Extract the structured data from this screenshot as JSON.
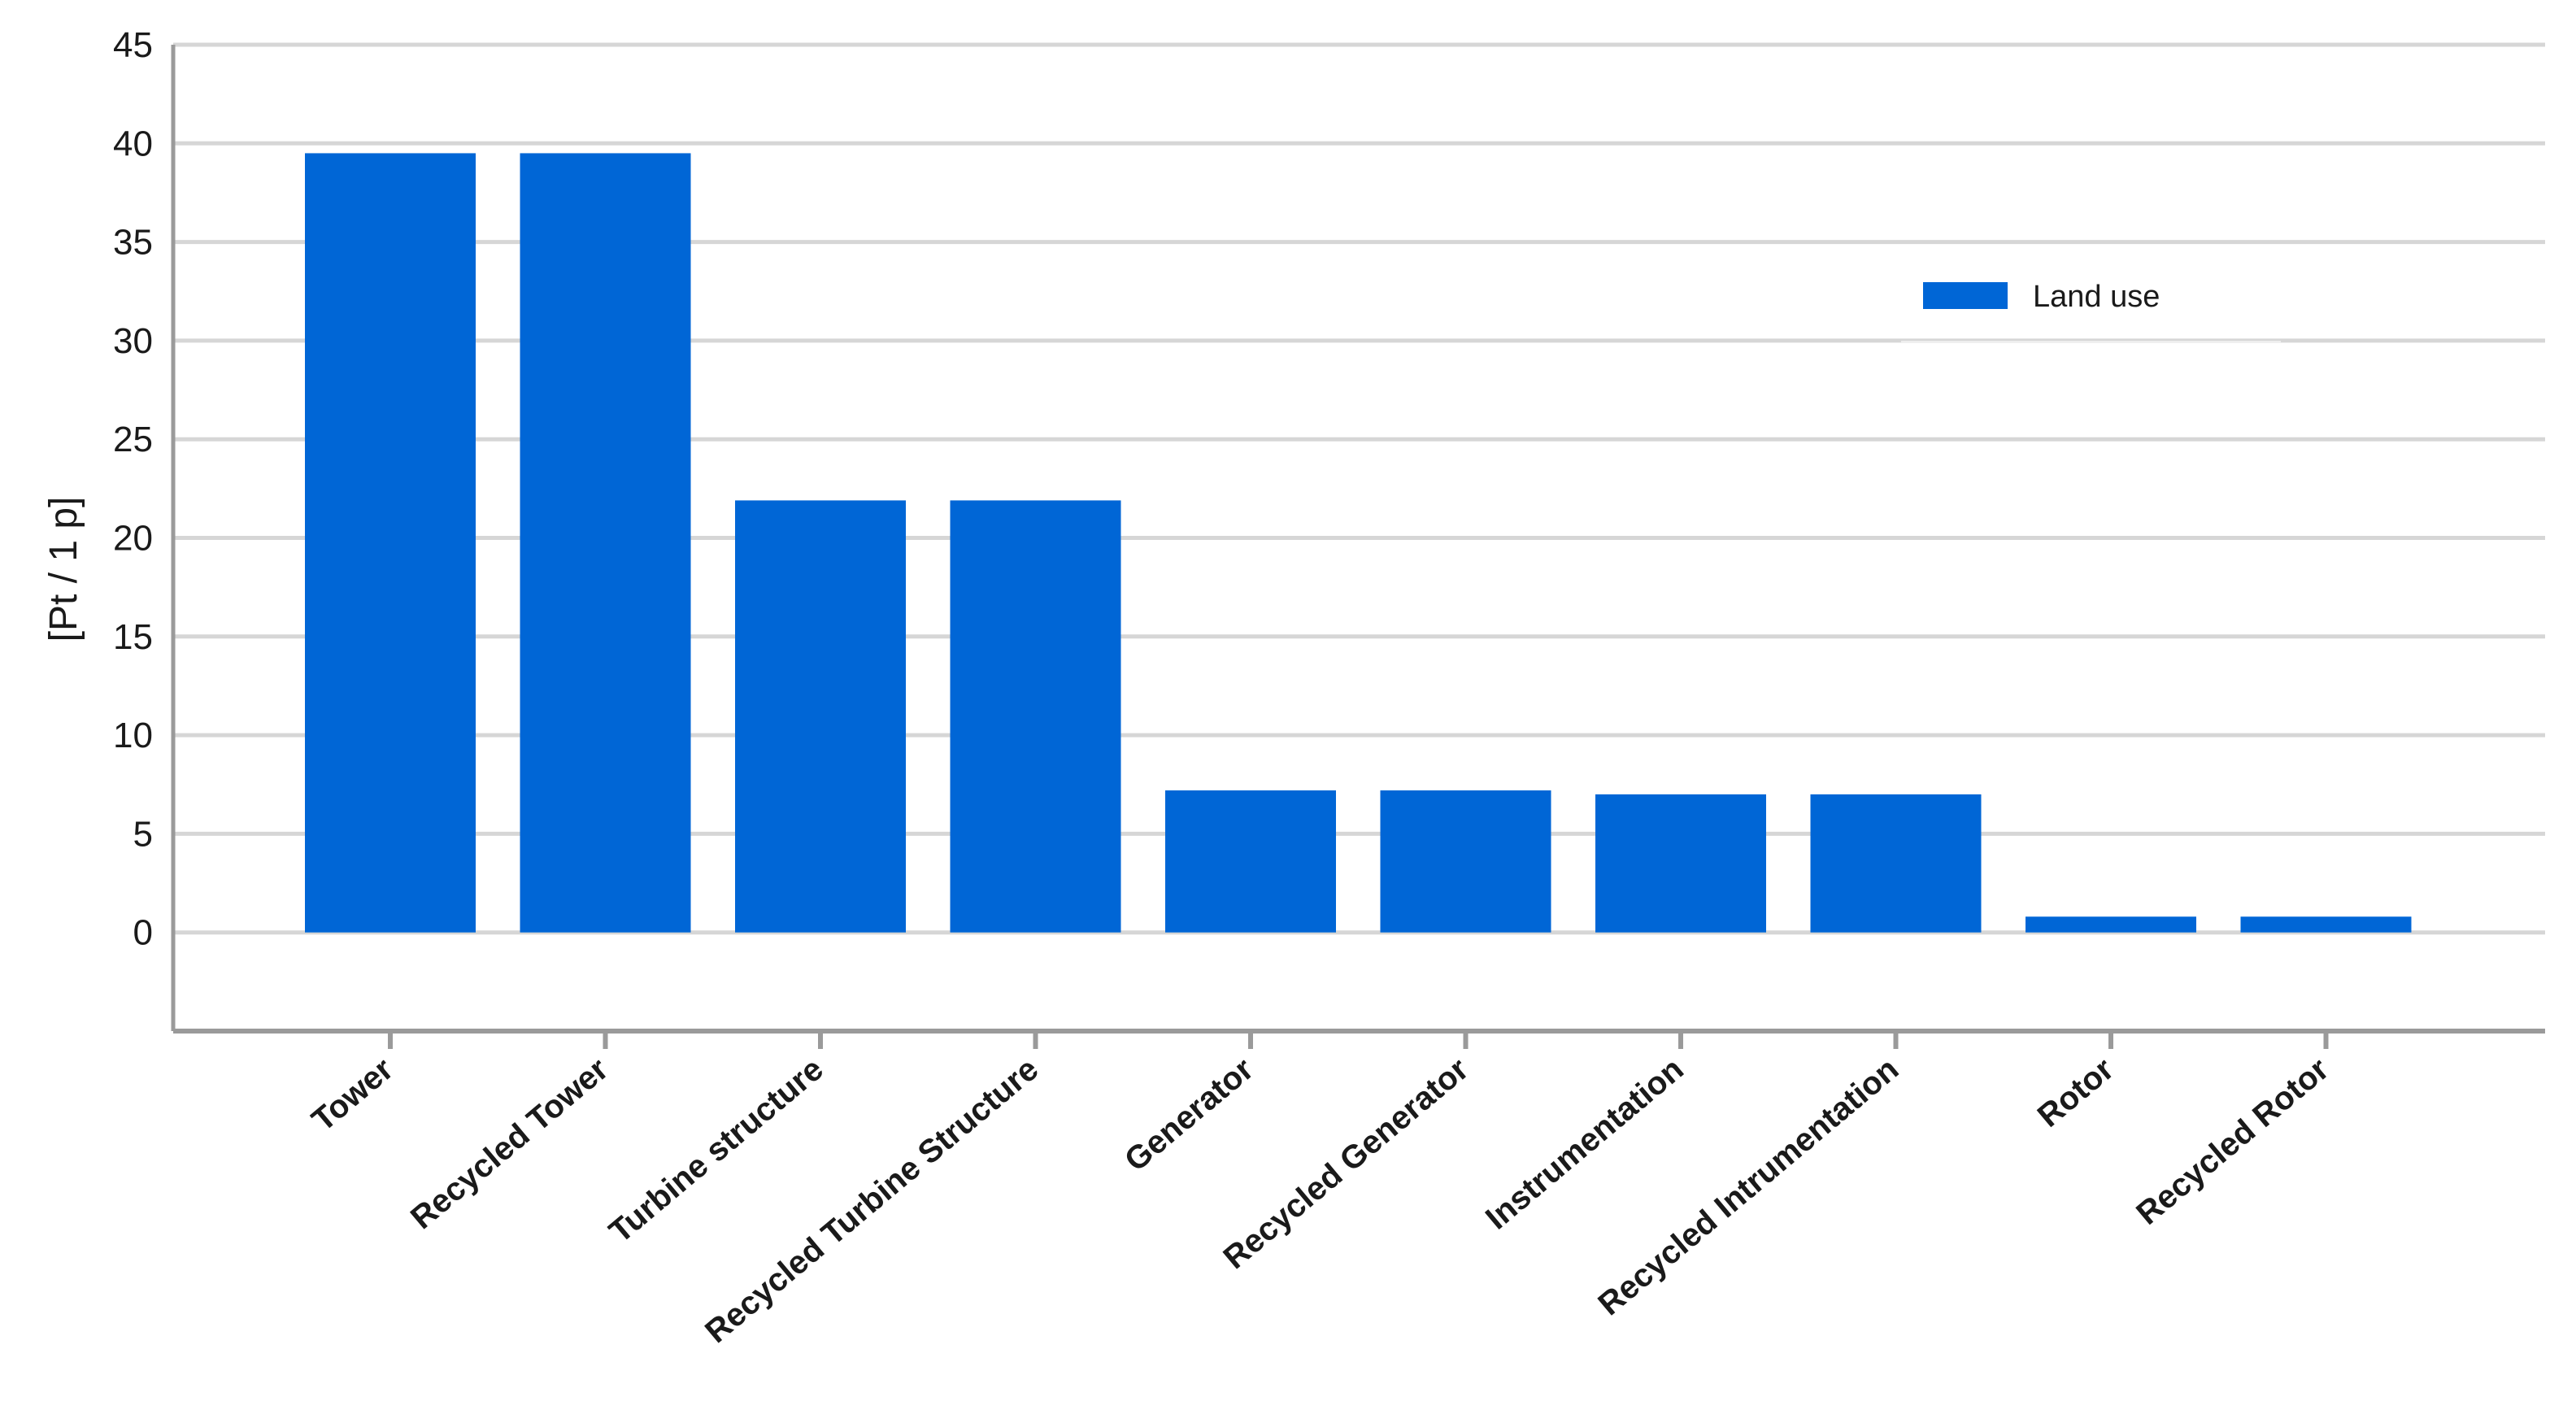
{
  "chart_data": {
    "type": "bar",
    "categories": [
      "Tower",
      "Recycled Tower",
      "Turbine structure",
      "Recycled Turbine Structure",
      "Generator",
      "Recycled Generator",
      "Instrumentation",
      "Recycled Intrumentation",
      "Rotor",
      "Recycled Rotor"
    ],
    "series": [
      {
        "name": "Land use",
        "color": "#0066d6",
        "values": [
          39.5,
          39.5,
          21.9,
          21.9,
          7.2,
          7.2,
          7.0,
          7.0,
          0.8,
          0.8
        ]
      }
    ],
    "ylabel": "[Pt / 1 p]",
    "ylim": [
      -5,
      45
    ],
    "yticks": [
      45,
      40,
      35,
      30,
      25,
      20,
      15,
      10,
      5,
      0
    ],
    "grid": true,
    "legend_position": "top-right",
    "colors": {
      "bar": "#0066d6",
      "grid": "#d6d6d6",
      "axis": "#9a9a9a"
    }
  }
}
